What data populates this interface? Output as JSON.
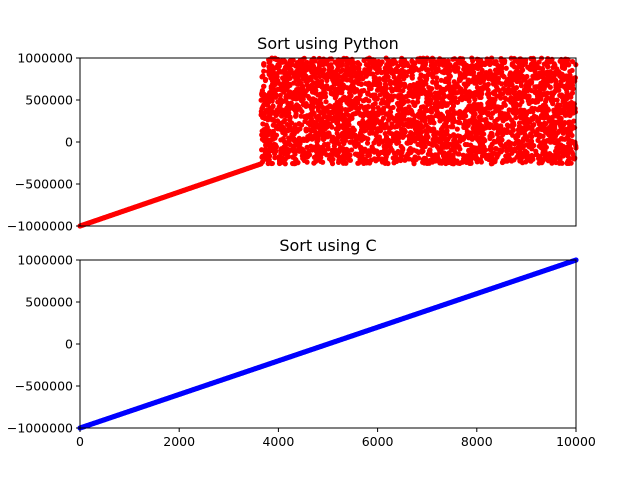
{
  "chart_data": [
    {
      "type": "scatter",
      "title": "Sort using Python",
      "xlabel": "",
      "ylabel": "",
      "xlim": [
        0,
        10000
      ],
      "ylim": [
        -1000000,
        1000000
      ],
      "yticks": [
        -1000000,
        -500000,
        0,
        500000,
        1000000
      ],
      "ytick_labels": [
        "−1000000",
        "−500000",
        "0",
        "500000",
        "1000000"
      ],
      "x_ticks_visible": false,
      "grid": false,
      "color": "#ff0000",
      "series": [
        {
          "segments": [
            {
              "kind": "sorted-line",
              "x_range": [
                0,
                3650
              ],
              "y_range": [
                -1000000,
                -260000
              ]
            },
            {
              "kind": "uniform-random",
              "x_range": [
                3650,
                10000
              ],
              "y_range": [
                -260000,
                1000000
              ]
            }
          ]
        }
      ]
    },
    {
      "type": "scatter",
      "title": "Sort using C",
      "xlabel": "",
      "ylabel": "",
      "xlim": [
        0,
        10000
      ],
      "ylim": [
        -1000000,
        1000000
      ],
      "xticks": [
        0,
        2000,
        4000,
        6000,
        8000,
        10000
      ],
      "xtick_labels": [
        "0",
        "2000",
        "4000",
        "6000",
        "8000",
        "10000"
      ],
      "yticks": [
        -1000000,
        -500000,
        0,
        500000,
        1000000
      ],
      "ytick_labels": [
        "−1000000",
        "−500000",
        "0",
        "500000",
        "1000000"
      ],
      "grid": false,
      "color": "#0000ff",
      "series": [
        {
          "segments": [
            {
              "kind": "sorted-line",
              "x_range": [
                0,
                10000
              ],
              "y_range": [
                -1000000,
                1000000
              ]
            }
          ]
        }
      ]
    }
  ]
}
